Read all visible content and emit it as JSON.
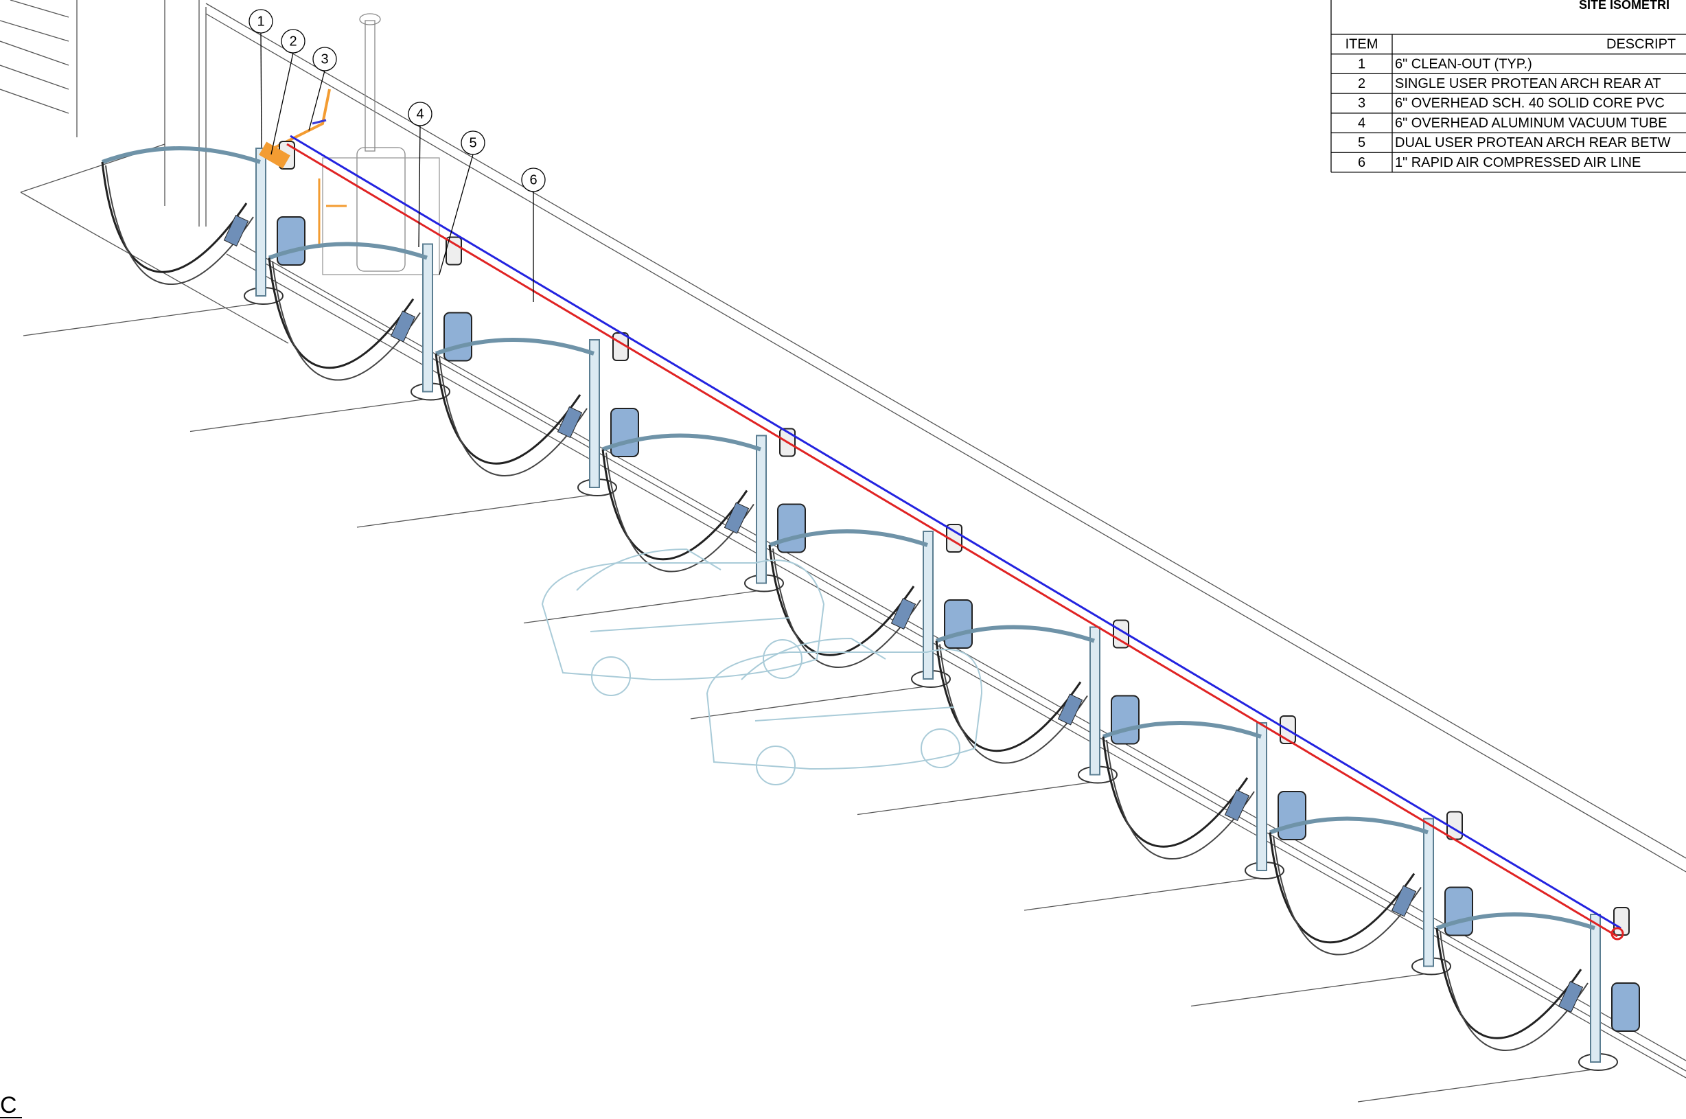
{
  "legend_table": {
    "title": "SITE ISOMETRI",
    "header": [
      "ITEM",
      "DESCRIPT"
    ],
    "rows": [
      [
        "1",
        "6\" CLEAN-OUT (TYP.)"
      ],
      [
        "2",
        "SINGLE USER PROTEAN ARCH REAR AT"
      ],
      [
        "3",
        "6\" OVERHEAD SCH. 40 SOLID CORE PVC"
      ],
      [
        "4",
        "6\" OVERHEAD ALUMINUM VACUUM TUBE"
      ],
      [
        "5",
        "DUAL USER PROTEAN ARCH REAR BETW"
      ],
      [
        "6",
        "1\" RAPID AIR COMPRESSED AIR LINE"
      ]
    ]
  },
  "callouts": [
    "1",
    "2",
    "3",
    "4",
    "5",
    "6"
  ],
  "view_label": "C"
}
